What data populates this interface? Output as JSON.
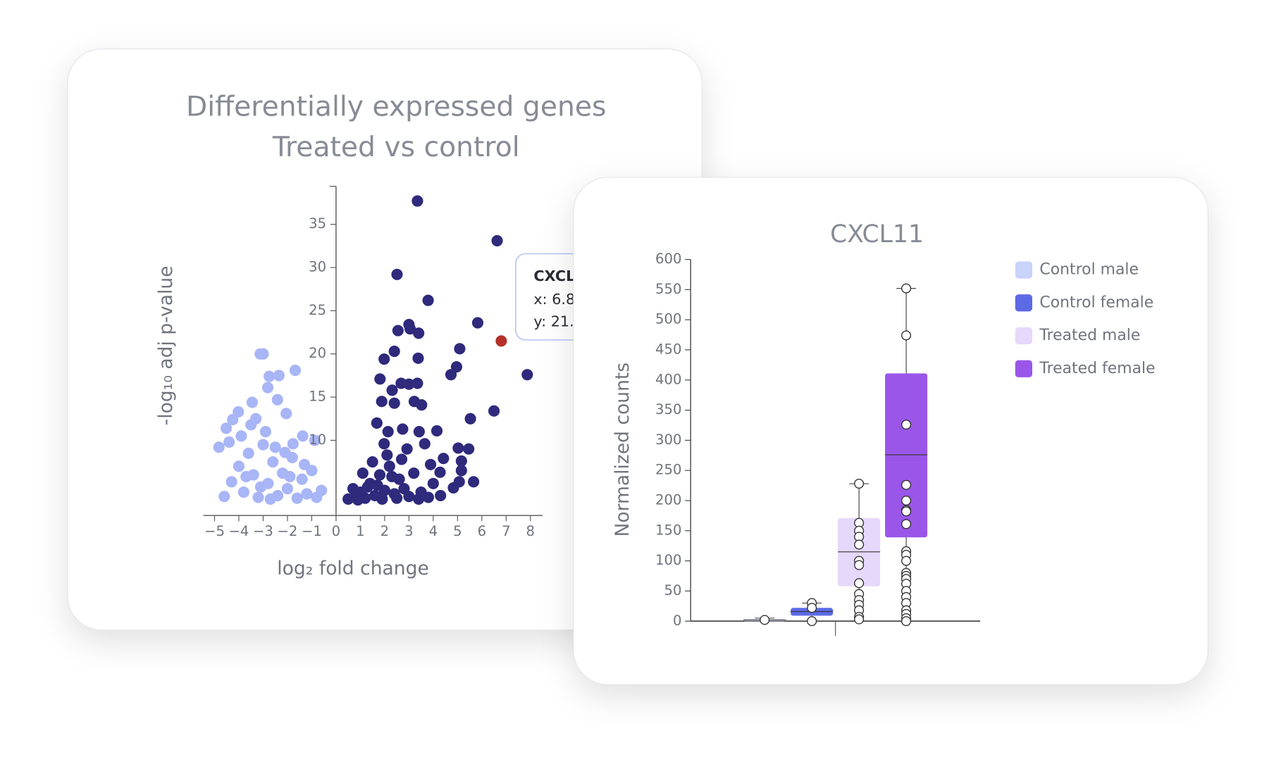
{
  "chart_data": [
    {
      "type": "scatter",
      "title": [
        "Differentially expressed genes",
        "Treated vs control"
      ],
      "xlabel": "log₂ fold change",
      "ylabel": "-log₁₀ adj p-value",
      "xlim": [
        -5.46,
        8.5
      ],
      "ylim": [
        1.3,
        39.4
      ],
      "xticks": [
        {
          "value": -5,
          "label": "−5"
        },
        {
          "value": -4,
          "label": "−4"
        },
        {
          "value": -3,
          "label": "−3"
        },
        {
          "value": -2,
          "label": "−2"
        },
        {
          "value": -1,
          "label": "−1"
        },
        0,
        1,
        2,
        3,
        4,
        5,
        6,
        7,
        8
      ],
      "yticks": [
        10,
        15,
        20,
        25,
        30,
        35
      ],
      "series": [
        {
          "color": "#a8b5f6",
          "x": [
            -3.12,
            -3.0,
            -1.68,
            -2.35,
            -2.75,
            -2.81,
            -2.41,
            -3.45,
            -4.02,
            -2.05,
            -4.25,
            -4.52,
            -4.82,
            -1.37,
            -1.77,
            -0.87,
            -4.6,
            -4.3,
            -4.0,
            -3.8,
            -3.6,
            -3.4,
            -3.2,
            -3.0,
            -2.8,
            -2.6,
            -2.4,
            -2.2,
            -2.0,
            -1.8,
            -1.6,
            -1.4,
            -1.2,
            -1.0,
            -0.8,
            -0.6,
            -3.9,
            -3.5,
            -3.3,
            -2.9,
            -2.5,
            -2.1,
            -1.9,
            -3.7,
            -4.4,
            -2.7,
            -1.3,
            -3.1
          ],
          "y": [
            20.0,
            20.0,
            18.1,
            17.5,
            17.4,
            16.1,
            14.7,
            14.4,
            13.3,
            13.1,
            12.4,
            11.4,
            9.2,
            10.5,
            9.6,
            10.0,
            3.5,
            5.2,
            7.0,
            4.0,
            8.5,
            6.0,
            3.4,
            9.5,
            5.0,
            7.5,
            3.6,
            6.2,
            4.4,
            8.0,
            3.3,
            5.5,
            3.8,
            6.5,
            3.4,
            4.2,
            10.5,
            11.8,
            12.5,
            11.0,
            9.2,
            8.6,
            5.8,
            5.8,
            9.8,
            3.2,
            7.2,
            4.6
          ]
        },
        {
          "color": "#2f2a7c",
          "x": [
            3.35,
            6.63,
            2.51,
            3.79,
            5.83,
            3.0,
            2.55,
            3.4,
            3.05,
            5.09,
            2.4,
            1.98,
            3.38,
            4.96,
            7.87,
            4.73,
            1.81,
            2.68,
            3.35,
            3.0,
            2.31,
            1.88,
            2.4,
            3.22,
            3.52,
            6.5,
            5.53,
            1.68,
            4.15,
            2.14,
            2.74,
            3.42,
            3.65,
            1.98,
            2.92,
            5.03,
            5.46,
            4.42,
            5.16,
            3.89,
            5.66,
            5.16,
            4.83,
            5.07,
            4.28,
            0.5,
            0.8,
            1.0,
            1.2,
            1.4,
            1.6,
            1.8,
            2.0,
            2.2,
            2.4,
            2.6,
            2.8,
            3.0,
            3.2,
            3.5,
            3.8,
            4.0,
            4.3,
            1.1,
            1.5,
            2.1,
            2.7,
            1.3,
            1.9,
            2.3,
            0.7,
            3.4,
            2.5,
            1.7,
            0.9
          ],
          "y": [
            37.7,
            33.1,
            29.2,
            26.2,
            23.6,
            23.4,
            22.7,
            22.4,
            22.9,
            20.6,
            20.3,
            19.4,
            19.5,
            18.5,
            17.6,
            17.6,
            17.1,
            16.6,
            16.6,
            16.5,
            15.8,
            14.5,
            14.3,
            14.5,
            14.1,
            13.4,
            12.5,
            12.0,
            11.1,
            11.0,
            11.3,
            11.0,
            9.6,
            9.6,
            9.0,
            9.1,
            9.0,
            7.9,
            7.6,
            7.2,
            5.2,
            6.5,
            4.5,
            5.2,
            6.3,
            3.2,
            3.5,
            4.0,
            3.3,
            5.0,
            3.6,
            6.0,
            4.2,
            7.0,
            3.8,
            5.5,
            4.4,
            3.5,
            6.2,
            4.0,
            3.4,
            5.0,
            3.6,
            6.2,
            7.5,
            8.3,
            7.8,
            4.6,
            3.2,
            5.8,
            4.4,
            3.2,
            3.3,
            4.8,
            3.1
          ]
        },
        {
          "color": "#b5302a",
          "x": [
            6.8
          ],
          "y": [
            21.5
          ]
        }
      ],
      "tooltip": [
        "CXCL",
        "x: 6.8",
        "y: 21."
      ]
    },
    {
      "type": "box",
      "title": "CXCL11",
      "ylabel": "Normalized counts",
      "ylim": [
        0,
        600
      ],
      "yticks": [
        0,
        50,
        100,
        150,
        200,
        250,
        300,
        350,
        400,
        450,
        500,
        550,
        600
      ],
      "legend": "top-right",
      "series": [
        {
          "name": "Control male",
          "color": "#c9d3fb",
          "whislo": 0,
          "q1": 0,
          "median": 2,
          "q3": 3,
          "whishi": 5,
          "points": [
            2
          ]
        },
        {
          "name": "Control female",
          "color": "#5d6ae6",
          "whislo": 0,
          "q1": 9,
          "median": 16,
          "q3": 22,
          "whishi": 30,
          "points": [
            30,
            22,
            0
          ]
        },
        {
          "name": "Treated male",
          "color": "#e5d8fb",
          "whislo": 0,
          "q1": 58,
          "median": 115,
          "q3": 171,
          "whishi": 228,
          "points": [
            228,
            163,
            150,
            140,
            127,
            100,
            93,
            63,
            45,
            35,
            27,
            18,
            7,
            3
          ]
        },
        {
          "name": "Treated female",
          "color": "#9a56e8",
          "whislo": 0,
          "q1": 139,
          "median": 276,
          "q3": 411,
          "whishi": 552,
          "points": [
            552,
            474,
            326,
            226,
            200,
            184,
            182,
            161,
            116,
            110,
            100,
            80,
            75,
            70,
            62,
            50,
            40,
            30,
            18,
            12,
            5,
            0
          ]
        }
      ]
    }
  ]
}
